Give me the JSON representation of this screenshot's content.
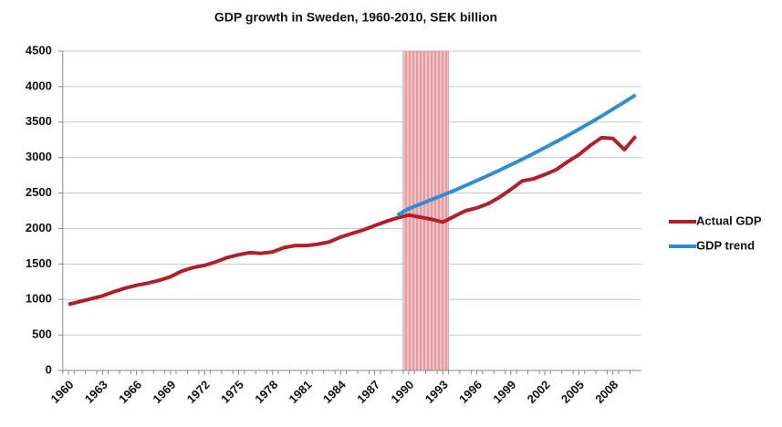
{
  "chart_data": {
    "type": "line",
    "title": "GDP growth in Sweden, 1960-2010, SEK billion",
    "x": [
      1960,
      1961,
      1962,
      1963,
      1964,
      1965,
      1966,
      1967,
      1968,
      1969,
      1970,
      1971,
      1972,
      1973,
      1974,
      1975,
      1976,
      1977,
      1978,
      1979,
      1980,
      1981,
      1982,
      1983,
      1984,
      1985,
      1986,
      1987,
      1988,
      1989,
      1990,
      1991,
      1992,
      1993,
      1994,
      1995,
      1996,
      1997,
      1998,
      1999,
      2000,
      2001,
      2002,
      2003,
      2004,
      2005,
      2006,
      2007,
      2008,
      2009,
      2010
    ],
    "xlim": [
      1959.5,
      2010.5
    ],
    "xticks": [
      1960,
      1963,
      1966,
      1969,
      1972,
      1975,
      1978,
      1981,
      1984,
      1987,
      1990,
      1993,
      1996,
      1999,
      2002,
      2005,
      2008
    ],
    "ylim": [
      0,
      4500
    ],
    "yticks": [
      0,
      500,
      1000,
      1500,
      2000,
      2500,
      3000,
      3500,
      4000,
      4500
    ],
    "grid": true,
    "legend": "right",
    "shaded_period": [
      1989.5,
      1993.5
    ],
    "shaded_color": "#e6a3a8",
    "series": [
      {
        "name": "Actual GDP",
        "color": "#b0202a",
        "values": [
          930,
          970,
          1010,
          1050,
          1110,
          1160,
          1200,
          1230,
          1270,
          1320,
          1400,
          1450,
          1480,
          1530,
          1590,
          1630,
          1660,
          1650,
          1670,
          1730,
          1760,
          1760,
          1780,
          1810,
          1880,
          1930,
          1980,
          2040,
          2100,
          2150,
          2190,
          2160,
          2130,
          2090,
          2170,
          2250,
          2290,
          2350,
          2440,
          2550,
          2670,
          2700,
          2760,
          2830,
          2940,
          3040,
          3170,
          3280,
          3270,
          3110,
          3300
        ]
      },
      {
        "name": "GDP trend",
        "color": "#2e8ed0",
        "values": [
          null,
          null,
          null,
          null,
          null,
          null,
          null,
          null,
          null,
          null,
          null,
          null,
          null,
          null,
          null,
          null,
          null,
          null,
          null,
          null,
          null,
          null,
          null,
          null,
          null,
          null,
          null,
          null,
          null,
          2190,
          2280,
          2342,
          2405,
          2470,
          2536,
          2605,
          2675,
          2747,
          2821,
          2897,
          2975,
          3056,
          3138,
          3223,
          3310,
          3399,
          3491,
          3585,
          3682,
          3781,
          3883
        ]
      }
    ]
  }
}
